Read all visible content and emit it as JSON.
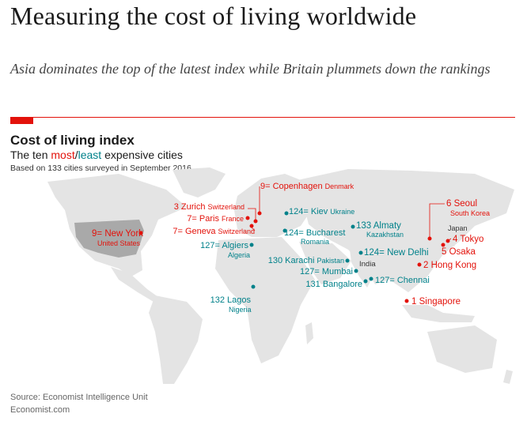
{
  "headline": "Measuring the cost of living worldwide",
  "standfirst": "Asia dominates the top of the latest index while Britain plummets down the rankings",
  "chart": {
    "title": "Cost of living index",
    "subtitle_prefix": "The ten ",
    "subtitle_most": "most",
    "subtitle_slash": "/",
    "subtitle_least": "least",
    "subtitle_suffix": " expensive cities",
    "note": "Based on 133 cities surveyed in September 2016"
  },
  "colors": {
    "most": "#e3120b",
    "least": "#00818a",
    "land": "#e4e4e4",
    "usa": "#a9a9a9"
  },
  "map_labels": {
    "japan": "Japan",
    "india": "India"
  },
  "cities": {
    "singapore": {
      "rank": "1",
      "name": "Singapore",
      "group": "most"
    },
    "hong_kong": {
      "rank": "2",
      "name": "Hong Kong",
      "group": "most"
    },
    "zurich": {
      "rank": "3",
      "name": "Zurich",
      "country": "Switzerland",
      "group": "most"
    },
    "tokyo": {
      "rank": "4",
      "name": "Tokyo",
      "group": "most"
    },
    "osaka": {
      "rank": "5",
      "name": "Osaka",
      "group": "most"
    },
    "seoul": {
      "rank": "6",
      "name": "Seoul",
      "country": "South Korea",
      "group": "most"
    },
    "paris": {
      "rank": "7=",
      "name": "Paris",
      "country": "France",
      "group": "most"
    },
    "geneva": {
      "rank": "7=",
      "name": "Geneva",
      "country": "Switzerland",
      "group": "most"
    },
    "copenhagen": {
      "rank": "9=",
      "name": "Copenhagen",
      "country": "Denmark",
      "group": "most"
    },
    "new_york": {
      "rank": "9=",
      "name": "New York",
      "country": "United States",
      "group": "most"
    },
    "kiev": {
      "rank": "124=",
      "name": "Kiev",
      "country": "Ukraine",
      "group": "least"
    },
    "bucharest": {
      "rank": "124=",
      "name": "Bucharest",
      "country": "Romania",
      "group": "least"
    },
    "new_delhi": {
      "rank": "124=",
      "name": "New Delhi",
      "group": "least"
    },
    "algiers": {
      "rank": "127=",
      "name": "Algiers",
      "country": "Algeria",
      "group": "least"
    },
    "mumbai": {
      "rank": "127=",
      "name": "Mumbai",
      "group": "least"
    },
    "chennai": {
      "rank": "127=",
      "name": "Chennai",
      "group": "least"
    },
    "karachi": {
      "rank": "130",
      "name": "Karachi",
      "country": "Pakistan",
      "group": "least"
    },
    "bangalore": {
      "rank": "131",
      "name": "Bangalore",
      "group": "least"
    },
    "lagos": {
      "rank": "132",
      "name": "Lagos",
      "country": "Nigeria",
      "group": "least"
    },
    "almaty": {
      "rank": "133",
      "name": "Almaty",
      "country": "Kazakhstan",
      "group": "least"
    }
  },
  "source": "Source: Economist Intelligence Unit",
  "credit": "Economist.com"
}
